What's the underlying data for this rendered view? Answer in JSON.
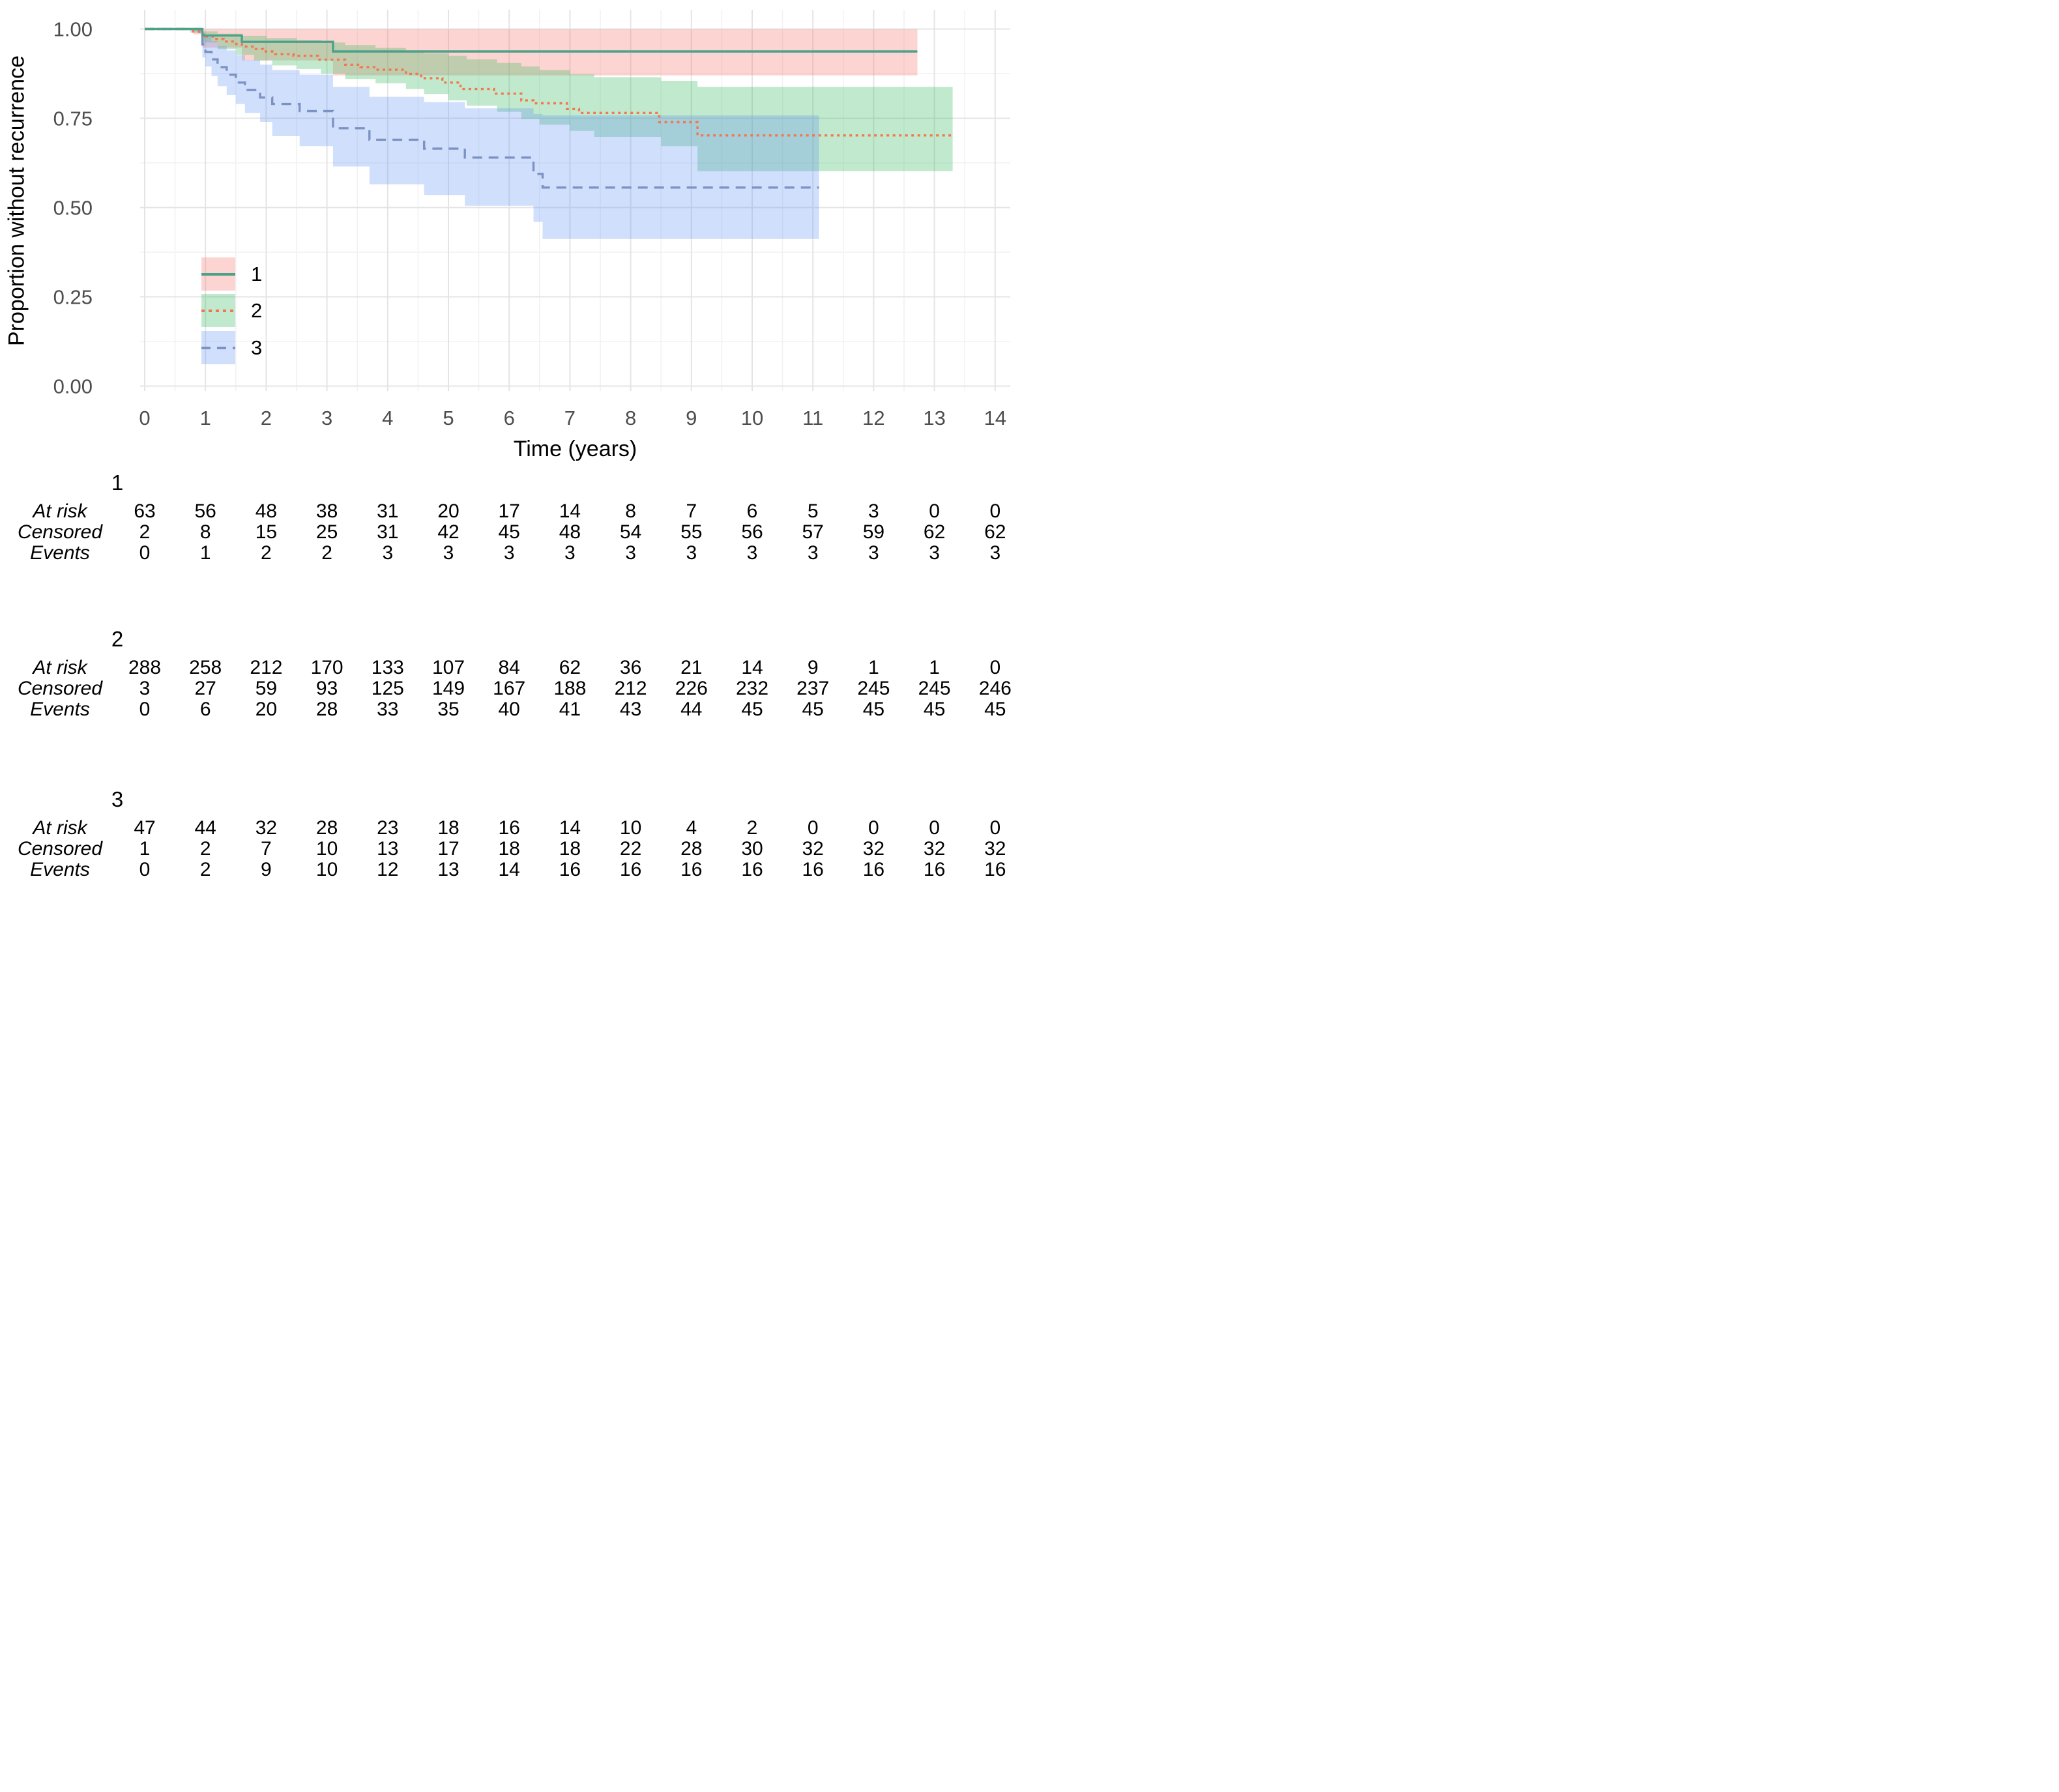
{
  "y_axis": {
    "title": "Proportion without recurrence",
    "ticks": [
      "1.00",
      "0.75",
      "0.50",
      "0.25",
      "0.00"
    ],
    "tick_values": [
      1.0,
      0.75,
      0.5,
      0.25,
      0.0
    ]
  },
  "x_axis": {
    "title": "Time (years)",
    "ticks": [
      "0",
      "1",
      "2",
      "3",
      "4",
      "5",
      "6",
      "7",
      "8",
      "9",
      "10",
      "11",
      "12",
      "13",
      "14"
    ],
    "tick_values": [
      0,
      1,
      2,
      3,
      4,
      5,
      6,
      7,
      8,
      9,
      10,
      11,
      12,
      13,
      14
    ]
  },
  "legend": {
    "entries": [
      {
        "label": "1",
        "line_style": "solid",
        "line_color": "#4EA189",
        "band_color": "rgba(244,116,106,0.30)"
      },
      {
        "label": "2",
        "line_style": "dotted",
        "line_color": "#F4764E",
        "band_color": "rgba(62,187,98,0.32)"
      },
      {
        "label": "3",
        "line_style": "dashed",
        "line_color": "#7D92C4",
        "band_color": "rgba(99,150,241,0.30)"
      }
    ]
  },
  "chart_data": {
    "type": "line",
    "subtype": "kaplan_meier_step",
    "title": "",
    "xlabel": "Time (years)",
    "ylabel": "Proportion without recurrence",
    "xlim": [
      0,
      14
    ],
    "ylim": [
      0.0,
      1.0
    ],
    "grid": "on",
    "legend_position": "inside-left-middle",
    "series": [
      {
        "name": "1",
        "line_style": "solid",
        "line_color": "#4EA189",
        "band_color": "rgba(244,116,106,0.30)",
        "line": [
          [
            0,
            1.0
          ],
          [
            0.95,
            0.982
          ],
          [
            1.6,
            0.964
          ],
          [
            3.1,
            0.937
          ],
          [
            12.72,
            0.937
          ]
        ],
        "band_upper": [
          [
            0.8,
            0.999
          ],
          [
            12.72,
            0.999
          ]
        ],
        "band_lower": [
          [
            0.8,
            0.985
          ],
          [
            0.95,
            0.948
          ],
          [
            1.6,
            0.912
          ],
          [
            3.1,
            0.87
          ],
          [
            12.72,
            0.87
          ]
        ]
      },
      {
        "name": "2",
        "line_style": "dotted",
        "line_color": "#F4764E",
        "band_color": "rgba(62,187,98,0.32)",
        "line": [
          [
            0,
            1.0
          ],
          [
            0.8,
            0.993
          ],
          [
            0.9,
            0.986
          ],
          [
            1.0,
            0.979
          ],
          [
            1.15,
            0.972
          ],
          [
            1.3,
            0.965
          ],
          [
            1.45,
            0.958
          ],
          [
            1.6,
            0.951
          ],
          [
            1.8,
            0.944
          ],
          [
            1.95,
            0.937
          ],
          [
            2.15,
            0.93
          ],
          [
            2.45,
            0.925
          ],
          [
            2.85,
            0.914
          ],
          [
            3.3,
            0.9
          ],
          [
            3.55,
            0.893
          ],
          [
            3.8,
            0.886
          ],
          [
            4.3,
            0.874
          ],
          [
            4.55,
            0.862
          ],
          [
            4.9,
            0.85
          ],
          [
            5.2,
            0.832
          ],
          [
            5.75,
            0.819
          ],
          [
            6.2,
            0.8
          ],
          [
            6.4,
            0.792
          ],
          [
            6.95,
            0.776
          ],
          [
            7.15,
            0.765
          ],
          [
            8.47,
            0.739
          ],
          [
            9.1,
            0.702
          ],
          [
            13.3,
            0.702
          ]
        ],
        "band_upper": [
          [
            0.75,
            0.999
          ],
          [
            0.95,
            0.993
          ],
          [
            1.2,
            0.987
          ],
          [
            1.6,
            0.981
          ],
          [
            2.0,
            0.975
          ],
          [
            2.5,
            0.969
          ],
          [
            2.9,
            0.962
          ],
          [
            3.3,
            0.955
          ],
          [
            3.8,
            0.947
          ],
          [
            4.3,
            0.94
          ],
          [
            4.6,
            0.932
          ],
          [
            5.0,
            0.925
          ],
          [
            5.3,
            0.915
          ],
          [
            5.8,
            0.905
          ],
          [
            6.2,
            0.895
          ],
          [
            6.5,
            0.885
          ],
          [
            7.0,
            0.873
          ],
          [
            7.4,
            0.865
          ],
          [
            8.5,
            0.855
          ],
          [
            9.1,
            0.838
          ],
          [
            13.3,
            0.838
          ]
        ],
        "band_lower": [
          [
            0.75,
            0.99
          ],
          [
            0.95,
            0.962
          ],
          [
            1.2,
            0.944
          ],
          [
            1.5,
            0.928
          ],
          [
            1.8,
            0.912
          ],
          [
            2.1,
            0.898
          ],
          [
            2.5,
            0.888
          ],
          [
            2.9,
            0.875
          ],
          [
            3.3,
            0.86
          ],
          [
            3.8,
            0.848
          ],
          [
            4.3,
            0.832
          ],
          [
            4.6,
            0.818
          ],
          [
            5.0,
            0.8
          ],
          [
            5.3,
            0.785
          ],
          [
            5.8,
            0.768
          ],
          [
            6.2,
            0.748
          ],
          [
            6.5,
            0.732
          ],
          [
            7.0,
            0.715
          ],
          [
            7.4,
            0.698
          ],
          [
            8.5,
            0.672
          ],
          [
            9.1,
            0.602
          ],
          [
            13.3,
            0.602
          ]
        ]
      },
      {
        "name": "3",
        "line_style": "dashed",
        "line_color": "#7D92C4",
        "band_color": "rgba(99,150,241,0.30)",
        "line": [
          [
            0,
            1.0
          ],
          [
            0.9,
            0.979
          ],
          [
            0.95,
            0.957
          ],
          [
            1.0,
            0.936
          ],
          [
            1.1,
            0.915
          ],
          [
            1.2,
            0.893
          ],
          [
            1.35,
            0.872
          ],
          [
            1.5,
            0.85
          ],
          [
            1.65,
            0.829
          ],
          [
            1.9,
            0.808
          ],
          [
            2.1,
            0.79
          ],
          [
            2.55,
            0.77
          ],
          [
            3.1,
            0.722
          ],
          [
            3.7,
            0.69
          ],
          [
            4.6,
            0.665
          ],
          [
            5.27,
            0.64
          ],
          [
            6.4,
            0.594
          ],
          [
            6.55,
            0.556
          ],
          [
            11.1,
            0.556
          ]
        ],
        "band_upper": [
          [
            0.85,
            0.999
          ],
          [
            0.95,
            0.99
          ],
          [
            1.0,
            0.978
          ],
          [
            1.1,
            0.966
          ],
          [
            1.2,
            0.952
          ],
          [
            1.35,
            0.94
          ],
          [
            1.5,
            0.927
          ],
          [
            1.65,
            0.913
          ],
          [
            1.9,
            0.9
          ],
          [
            2.1,
            0.885
          ],
          [
            2.55,
            0.872
          ],
          [
            3.1,
            0.838
          ],
          [
            3.7,
            0.81
          ],
          [
            4.6,
            0.795
          ],
          [
            5.27,
            0.778
          ],
          [
            6.4,
            0.762
          ],
          [
            6.55,
            0.758
          ],
          [
            11.1,
            0.758
          ]
        ],
        "band_lower": [
          [
            0.85,
            0.99
          ],
          [
            0.95,
            0.92
          ],
          [
            1.0,
            0.895
          ],
          [
            1.1,
            0.868
          ],
          [
            1.2,
            0.84
          ],
          [
            1.35,
            0.815
          ],
          [
            1.5,
            0.79
          ],
          [
            1.65,
            0.765
          ],
          [
            1.9,
            0.74
          ],
          [
            2.1,
            0.7
          ],
          [
            2.55,
            0.672
          ],
          [
            3.1,
            0.615
          ],
          [
            3.7,
            0.565
          ],
          [
            4.6,
            0.535
          ],
          [
            5.27,
            0.505
          ],
          [
            6.4,
            0.46
          ],
          [
            6.55,
            0.412
          ],
          [
            11.1,
            0.412
          ]
        ]
      }
    ]
  },
  "risk_tables": {
    "times": [
      0,
      1,
      2,
      3,
      4,
      5,
      6,
      7,
      8,
      9,
      10,
      11,
      12,
      13,
      14
    ],
    "row_labels": [
      "At risk",
      "Censored",
      "Events"
    ],
    "groups": [
      {
        "group_label": "1",
        "rows": [
          {
            "label": "At risk",
            "values": [
              63,
              56,
              48,
              38,
              31,
              20,
              17,
              14,
              8,
              7,
              6,
              5,
              3,
              0,
              0
            ]
          },
          {
            "label": "Censored",
            "values": [
              2,
              8,
              15,
              25,
              31,
              42,
              45,
              48,
              54,
              55,
              56,
              57,
              59,
              62,
              62
            ]
          },
          {
            "label": "Events",
            "values": [
              0,
              1,
              2,
              2,
              3,
              3,
              3,
              3,
              3,
              3,
              3,
              3,
              3,
              3,
              3
            ]
          }
        ]
      },
      {
        "group_label": "2",
        "rows": [
          {
            "label": "At risk",
            "values": [
              288,
              258,
              212,
              170,
              133,
              107,
              84,
              62,
              36,
              21,
              14,
              9,
              1,
              1,
              0
            ]
          },
          {
            "label": "Censored",
            "values": [
              3,
              27,
              59,
              93,
              125,
              149,
              167,
              188,
              212,
              226,
              232,
              237,
              245,
              245,
              246
            ]
          },
          {
            "label": "Events",
            "values": [
              0,
              6,
              20,
              28,
              33,
              35,
              40,
              41,
              43,
              44,
              45,
              45,
              45,
              45,
              45
            ]
          }
        ]
      },
      {
        "group_label": "3",
        "rows": [
          {
            "label": "At risk",
            "values": [
              47,
              44,
              32,
              28,
              23,
              18,
              16,
              14,
              10,
              4,
              2,
              0,
              0,
              0,
              0
            ]
          },
          {
            "label": "Censored",
            "values": [
              1,
              2,
              7,
              10,
              13,
              17,
              18,
              18,
              22,
              28,
              30,
              32,
              32,
              32,
              32
            ]
          },
          {
            "label": "Events",
            "values": [
              0,
              2,
              9,
              10,
              12,
              13,
              14,
              16,
              16,
              16,
              16,
              16,
              16,
              16,
              16
            ]
          }
        ]
      }
    ]
  }
}
